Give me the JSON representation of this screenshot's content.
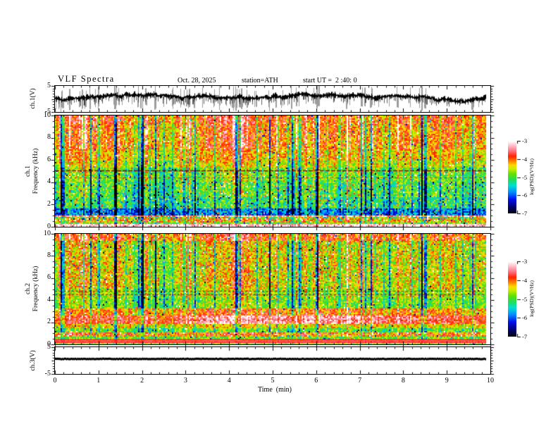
{
  "header": {
    "title": "VLF Spectra",
    "date": "Oct. 28, 2025",
    "station": "station=ATH",
    "start_ut": "start UT =  2 :40: 0"
  },
  "xaxis": {
    "label": "Time  (min)",
    "ticks": [
      "0",
      "1",
      "2",
      "3",
      "4",
      "5",
      "6",
      "7",
      "8",
      "9",
      "10"
    ],
    "lim": [
      0,
      10
    ],
    "minor_step": 0.2
  },
  "panels": {
    "ch1_wave": {
      "ylabel": "ch.1(V)",
      "ytick_labels": [
        "5",
        "-5"
      ],
      "ylim": [
        -5,
        5
      ]
    },
    "spec1": {
      "ylabel_line1": "ch.1",
      "ylabel_line2": "Frequency  (kHz)",
      "ytick_labels": [
        "10",
        "8",
        "6",
        "4",
        "2",
        "0"
      ],
      "ylim": [
        0,
        10
      ]
    },
    "spec2": {
      "ylabel_line1": "ch.2",
      "ylabel_line2": "Frequency  (kHz)",
      "ytick_labels": [
        "10",
        "8",
        "6",
        "4",
        "2",
        "0"
      ],
      "ylim": [
        0,
        10
      ]
    },
    "ch3_wave": {
      "ylabel": "ch.3(V)",
      "ytick_labels": [
        "5",
        "-5"
      ],
      "ylim": [
        -5,
        5
      ]
    }
  },
  "colorbar": {
    "label": "log(PSD)(V²/Hz)",
    "tick_labels": [
      "-3",
      "-4",
      "-5",
      "-6",
      "-7"
    ],
    "lim": [
      -3,
      -7
    ],
    "colormap_stops": [
      [
        0.0,
        "#000000"
      ],
      [
        0.09,
        "#000070"
      ],
      [
        0.2,
        "#0010ee"
      ],
      [
        0.3,
        "#0090ff"
      ],
      [
        0.39,
        "#00e0d0"
      ],
      [
        0.47,
        "#22dd55"
      ],
      [
        0.55,
        "#66e000"
      ],
      [
        0.62,
        "#ccee00"
      ],
      [
        0.67,
        "#ffd800"
      ],
      [
        0.72,
        "#ff8800"
      ],
      [
        0.79,
        "#ff2200"
      ],
      [
        0.87,
        "#ff7788"
      ],
      [
        0.94,
        "#ffc0cc"
      ],
      [
        1.0,
        "#ffffff"
      ]
    ]
  },
  "chart_data": [
    {
      "type": "line",
      "name": "ch1-waveform",
      "ylabel": "ch.1(V)",
      "ylim": [
        -5,
        5
      ],
      "xlim": [
        0,
        10
      ],
      "mean_level_v": 0.9,
      "spike_extent_v": [
        -5,
        5
      ],
      "description": "Broadband VLF time series, noisy trace around +1 V with dense impulsive sferic spikes reaching the +-5 V clip levels",
      "seed": 41
    },
    {
      "type": "heatmap",
      "name": "ch1-spectrogram",
      "value_range": [
        -7,
        -3
      ],
      "freq_range_khz": [
        0,
        10
      ],
      "time_range_min": [
        0,
        10
      ],
      "seed": 21,
      "stripes": {
        "count": 170,
        "neg_fraction": 0.55,
        "seed": 11
      },
      "bands": [
        {
          "f0": 9.2,
          "f1": 10.01,
          "v": -4.0,
          "n": 0.5,
          "sp": 0.8,
          "sn": 0.9,
          "sk": 0.05
        },
        {
          "f0": 7.0,
          "f1": 9.2,
          "v": -4.15,
          "n": 0.5,
          "sp": 0.85,
          "sn": 1.0,
          "sk": 0.07
        },
        {
          "f0": 6.0,
          "f1": 7.0,
          "v": -4.35,
          "n": 0.45,
          "sp": 0.6,
          "sn": 0.9,
          "sk": 0.06
        },
        {
          "f0": 5.3,
          "f1": 6.0,
          "v": -4.55,
          "n": 0.45,
          "sp": 0.55,
          "sn": 0.95,
          "sk": 0.06
        },
        {
          "f0": 4.1,
          "f1": 5.3,
          "v": -4.85,
          "n": 0.5,
          "sp": 0.5,
          "sn": 1.1,
          "sk": 0.08
        },
        {
          "f0": 2.6,
          "f1": 4.1,
          "v": -5.0,
          "n": 0.55,
          "sp": 0.45,
          "sn": 1.2,
          "sk": 0.1
        },
        {
          "f0": 1.7,
          "f1": 2.6,
          "v": -5.15,
          "n": 0.6,
          "sp": 0.4,
          "sn": 1.1,
          "sk": 0.12
        },
        {
          "f0": 1.05,
          "f1": 1.7,
          "v": -5.85,
          "n": 0.55,
          "sp": 0.3,
          "sn": 0.8,
          "sk": 0.15
        },
        {
          "f0": 0.89,
          "f1": 1.05,
          "v": -3.4,
          "n": 0.45,
          "sp": 0.25,
          "sn": 0.3,
          "sk": 0.02
        },
        {
          "f0": 0.7,
          "f1": 0.89,
          "v": -4.8,
          "n": 0.8,
          "sp": 0.35,
          "sn": 0.5,
          "sk": 0.18
        },
        {
          "f0": 0.38,
          "f1": 0.7,
          "v": -4.3,
          "n": 0.7,
          "sp": 0.3,
          "sn": 0.5,
          "sk": 0.2
        },
        {
          "f0": 0.19,
          "f1": 0.38,
          "v": -4.9,
          "n": 0.55,
          "sp": 0.25,
          "sn": 0.45,
          "sk": 0.08
        },
        {
          "f0": 0.0,
          "f1": 0.19,
          "v": -3.2,
          "n": 0.35,
          "sp": 0.1,
          "sn": 0.15,
          "sk": 0.02
        }
      ],
      "hlines": [
        {
          "f": 5.05,
          "color": "#6b0000",
          "dash": [
            6,
            2
          ],
          "alpha": 0.85,
          "lw": 1.4
        },
        {
          "f": 4.45,
          "color": "#6b0000",
          "dash": [
            3,
            4
          ],
          "alpha": 0.55,
          "lw": 1.2
        }
      ]
    },
    {
      "type": "heatmap",
      "name": "ch2-spectrogram",
      "value_range": [
        -7,
        -3
      ],
      "freq_range_khz": [
        0,
        10
      ],
      "time_range_min": [
        0,
        10
      ],
      "seed": 31,
      "stripes": {
        "count": 170,
        "neg_fraction": 0.55,
        "seed": 11
      },
      "bands": [
        {
          "f0": 9.4,
          "f1": 10.01,
          "v": -3.95,
          "n": 0.5,
          "sp": 0.7,
          "sn": 0.8,
          "sk": 0.05
        },
        {
          "f0": 5.05,
          "f1": 9.4,
          "v": -4.5,
          "n": 0.55,
          "sp": 0.6,
          "sn": 1.1,
          "sk": 0.07
        },
        {
          "f0": 4.1,
          "f1": 5.05,
          "v": -4.7,
          "n": 0.5,
          "sp": 0.5,
          "sn": 1.0,
          "sk": 0.07
        },
        {
          "f0": 3.2,
          "f1": 4.1,
          "v": -4.8,
          "n": 0.45,
          "sp": 0.45,
          "sn": 0.9,
          "sk": 0.07
        },
        {
          "f0": 2.55,
          "f1": 3.2,
          "v": -4.3,
          "n": 0.5,
          "sp": 0.4,
          "sn": 0.7,
          "sk": 0.06,
          "b": {
            "c": 0.55,
            "w": 0.3,
            "a": 0.3
          }
        },
        {
          "f0": 1.85,
          "f1": 2.55,
          "v": -3.95,
          "n": 0.45,
          "sp": 0.35,
          "sn": 0.5,
          "b": {
            "c": 0.55,
            "w": 0.28,
            "a": 0.6
          }
        },
        {
          "f0": 1.5,
          "f1": 1.85,
          "v": -4.4,
          "n": 0.45,
          "sp": 0.3,
          "sn": 0.6,
          "sk": 0.05
        },
        {
          "f0": 1.08,
          "f1": 1.5,
          "v": -4.9,
          "n": 0.5,
          "sp": 0.3,
          "sn": 0.6,
          "sk": 0.1
        },
        {
          "f0": 0.68,
          "f1": 1.08,
          "v": -4.05,
          "n": 0.6,
          "sp": 0.3,
          "sn": 0.4,
          "sk": 0.12
        },
        {
          "f0": 0.5,
          "f1": 0.68,
          "v": -4.8,
          "n": 0.5,
          "sp": 0.2,
          "sn": 0.4,
          "sk": 0.05
        },
        {
          "f0": 0.08,
          "f1": 0.5,
          "v": -3.15,
          "n": 0.3,
          "sp": 0.1,
          "sn": 0.15,
          "sk": 0.02
        },
        {
          "f0": 0.0,
          "f1": 0.08,
          "v": -4.9,
          "n": 0.4,
          "sp": 0.1,
          "sn": 0.2,
          "sk": 0.02
        }
      ],
      "hlines": [
        {
          "f": 4.85,
          "color": "#6b0000",
          "dash": [
            3,
            3
          ],
          "alpha": 0.7,
          "lw": 1.2
        },
        {
          "f": 4.5,
          "color": "#6b0000",
          "dash": [
            3,
            3
          ],
          "alpha": 0.7,
          "lw": 1.2
        },
        {
          "f": 2.25,
          "color": "#7a1000",
          "dash": [
            4,
            3
          ],
          "alpha": 0.45,
          "lw": 1.2
        },
        {
          "f": 0.44,
          "color": "#ee1100",
          "dash": [],
          "alpha": 0.95,
          "lw": 1.3
        },
        {
          "f": 0.32,
          "color": "#ee1100",
          "dash": [],
          "alpha": 0.9,
          "lw": 1.3
        },
        {
          "f": 0.2,
          "color": "#ee1100",
          "dash": [],
          "alpha": 0.9,
          "lw": 1.3
        }
      ]
    },
    {
      "type": "line",
      "name": "ch3-waveform",
      "ylabel": "ch.3(V)",
      "ylim": [
        -5,
        5
      ],
      "xlim": [
        0,
        10
      ],
      "value_v": 0.6,
      "description": "Flat thick trace at about +0.6 V for the full record (channel inactive)",
      "seed": 51
    }
  ]
}
